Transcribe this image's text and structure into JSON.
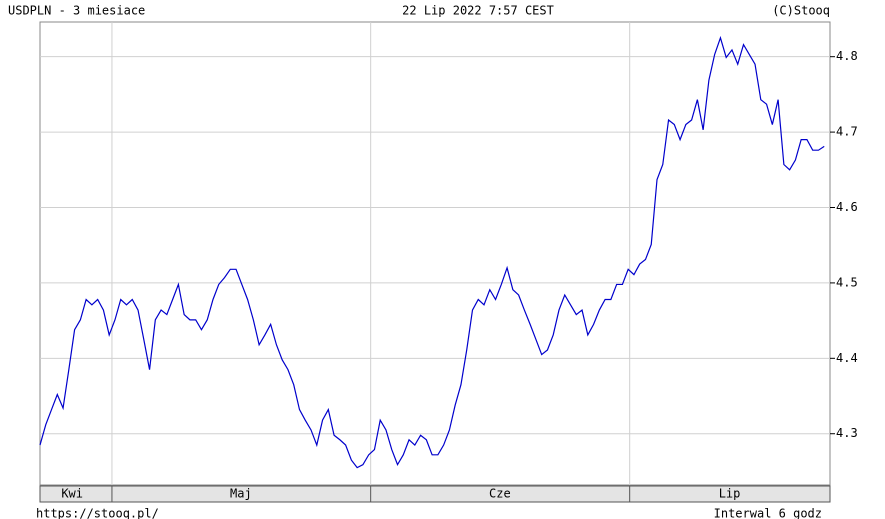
{
  "chart_data": {
    "type": "line",
    "title": "USDPLN - 3 miesiace",
    "date": "22 Lip 2022 7:57 CEST",
    "source": "(C)Stooq",
    "footer_left": "https://stooq.pl/",
    "footer_right": "Interwal 6 godz",
    "color": "#0000cc",
    "grid": true,
    "ylim": [
      4.232,
      4.846
    ],
    "yticks": [
      4.3,
      4.4,
      4.5,
      4.6,
      4.7,
      4.8
    ],
    "xlim": [
      0,
      140
    ],
    "xgrid": [
      12.75,
      58.6,
      104.5
    ],
    "xticks": [
      {
        "value": 5.7,
        "label": "Kwi"
      },
      {
        "value": 35.6,
        "label": "Maj"
      },
      {
        "value": 81.5,
        "label": "Cze"
      },
      {
        "value": 122.2,
        "label": "Lip"
      }
    ],
    "values": [
      4.285,
      4.312,
      4.332,
      4.352,
      4.334,
      4.385,
      4.438,
      4.451,
      4.478,
      4.471,
      4.478,
      4.464,
      4.431,
      4.451,
      4.478,
      4.471,
      4.478,
      4.464,
      4.425,
      4.385,
      4.451,
      4.464,
      4.458,
      4.478,
      4.498,
      4.458,
      4.451,
      4.451,
      4.438,
      4.451,
      4.478,
      4.498,
      4.507,
      4.518,
      4.518,
      4.498,
      4.478,
      4.451,
      4.418,
      4.431,
      4.445,
      4.418,
      4.398,
      4.385,
      4.365,
      4.332,
      4.318,
      4.305,
      4.285,
      4.318,
      4.332,
      4.298,
      4.292,
      4.285,
      4.265,
      4.255,
      4.259,
      4.272,
      4.279,
      4.318,
      4.305,
      4.279,
      4.259,
      4.272,
      4.292,
      4.285,
      4.298,
      4.292,
      4.272,
      4.272,
      4.285,
      4.305,
      4.338,
      4.365,
      4.411,
      4.464,
      4.478,
      4.471,
      4.491,
      4.478,
      4.498,
      4.52,
      4.491,
      4.484,
      4.464,
      4.445,
      4.425,
      4.405,
      4.411,
      4.431,
      4.464,
      4.484,
      4.471,
      4.458,
      4.464,
      4.431,
      4.445,
      4.464,
      4.478,
      4.478,
      4.498,
      4.498,
      4.518,
      4.511,
      4.525,
      4.531,
      4.551,
      4.637,
      4.657,
      4.716,
      4.71,
      4.69,
      4.71,
      4.716,
      4.743,
      4.703,
      4.769,
      4.803,
      4.825,
      4.799,
      4.809,
      4.79,
      4.816,
      4.803,
      4.79,
      4.743,
      4.737,
      4.71,
      4.743,
      4.657,
      4.65,
      4.663,
      4.69,
      4.69,
      4.676,
      4.676,
      4.681
    ]
  }
}
